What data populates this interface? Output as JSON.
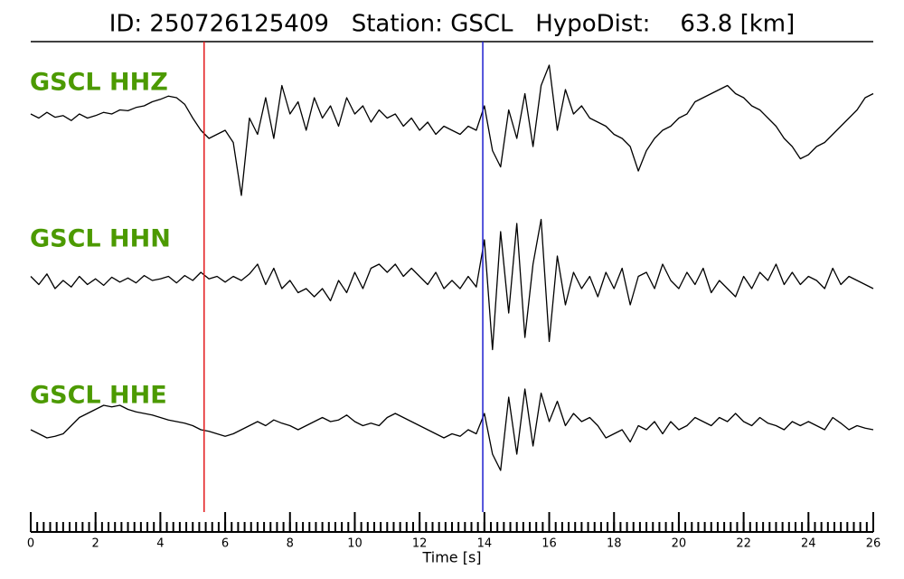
{
  "chart_data": {
    "type": "seismogram",
    "title": "ID: 250726125409   Station: GSCL   HypoDist:    63.8 [km]",
    "x_label": "Time [s]",
    "xlim": [
      0,
      26
    ],
    "xticks": [
      0,
      2,
      4,
      6,
      8,
      10,
      12,
      14,
      16,
      18,
      20,
      22,
      24,
      26
    ],
    "xminor_step": 0.2,
    "ylim": [
      -1,
      1
    ],
    "name_color": "#4c9a00",
    "markers": [
      {
        "x": 5.35,
        "color": "#e41a1c"
      },
      {
        "x": 13.95,
        "color": "#1f1fd0"
      }
    ],
    "x": [
      0,
      0.25,
      0.5,
      0.75,
      1,
      1.25,
      1.5,
      1.75,
      2,
      2.25,
      2.5,
      2.75,
      3,
      3.25,
      3.5,
      3.75,
      4,
      4.25,
      4.5,
      4.75,
      5,
      5.25,
      5.5,
      5.75,
      6,
      6.25,
      6.5,
      6.75,
      7,
      7.25,
      7.5,
      7.75,
      8,
      8.25,
      8.5,
      8.75,
      9,
      9.25,
      9.5,
      9.75,
      10,
      10.25,
      10.5,
      10.75,
      11,
      11.25,
      11.5,
      11.75,
      12,
      12.25,
      12.5,
      12.75,
      13,
      13.25,
      13.5,
      13.75,
      14,
      14.25,
      14.5,
      14.75,
      15,
      15.25,
      15.5,
      15.75,
      16,
      16.25,
      16.5,
      16.75,
      17,
      17.25,
      17.5,
      17.75,
      18,
      18.25,
      18.5,
      18.75,
      19,
      19.25,
      19.5,
      19.75,
      20,
      20.25,
      20.5,
      20.75,
      21,
      21.25,
      21.5,
      21.75,
      22,
      22.25,
      22.5,
      22.75,
      23,
      23.25,
      23.5,
      23.75,
      24,
      24.25,
      24.5,
      24.75,
      25,
      25.25,
      25.5,
      25.75,
      26
    ],
    "series": [
      {
        "name": "GSCL HHZ",
        "color": "#000000",
        "values": [
          0.1,
          0.05,
          0.12,
          0.06,
          0.08,
          0.02,
          0.1,
          0.05,
          0.08,
          0.12,
          0.1,
          0.15,
          0.14,
          0.18,
          0.2,
          0.25,
          0.28,
          0.32,
          0.3,
          0.22,
          0.05,
          -0.1,
          -0.2,
          -0.15,
          -0.1,
          -0.25,
          -0.9,
          0.05,
          -0.15,
          0.3,
          -0.2,
          0.45,
          0.1,
          0.25,
          -0.1,
          0.3,
          0.05,
          0.2,
          -0.05,
          0.3,
          0.1,
          0.2,
          0.0,
          0.15,
          0.05,
          0.1,
          -0.05,
          0.05,
          -0.1,
          0.0,
          -0.15,
          -0.05,
          -0.1,
          -0.15,
          -0.05,
          -0.1,
          0.2,
          -0.35,
          -0.55,
          0.15,
          -0.2,
          0.35,
          -0.3,
          0.45,
          0.7,
          -0.1,
          0.4,
          0.1,
          0.2,
          0.05,
          0.0,
          -0.05,
          -0.15,
          -0.2,
          -0.3,
          -0.6,
          -0.35,
          -0.2,
          -0.1,
          -0.05,
          0.05,
          0.1,
          0.25,
          0.3,
          0.35,
          0.4,
          0.45,
          0.35,
          0.3,
          0.2,
          0.15,
          0.05,
          -0.05,
          -0.2,
          -0.3,
          -0.45,
          -0.4,
          -0.3,
          -0.25,
          -0.15,
          -0.05,
          0.05,
          0.15,
          0.3,
          0.35
        ]
      },
      {
        "name": "GSCL HHN",
        "color": "#000000",
        "values": [
          0.05,
          -0.05,
          0.08,
          -0.1,
          0.0,
          -0.08,
          0.05,
          -0.05,
          0.02,
          -0.06,
          0.04,
          -0.02,
          0.03,
          -0.03,
          0.06,
          0.0,
          0.02,
          0.05,
          -0.03,
          0.06,
          0.0,
          0.1,
          0.02,
          0.05,
          -0.02,
          0.05,
          0.0,
          0.08,
          0.2,
          -0.05,
          0.15,
          -0.1,
          0.0,
          -0.15,
          -0.1,
          -0.2,
          -0.1,
          -0.25,
          0.0,
          -0.15,
          0.1,
          -0.1,
          0.15,
          0.2,
          0.1,
          0.2,
          0.05,
          0.15,
          0.05,
          -0.05,
          0.1,
          -0.1,
          0.0,
          -0.1,
          0.05,
          -0.08,
          0.5,
          -0.85,
          0.6,
          -0.4,
          0.7,
          -0.7,
          0.2,
          0.75,
          -0.75,
          0.3,
          -0.3,
          0.1,
          -0.1,
          0.05,
          -0.2,
          0.1,
          -0.1,
          0.15,
          -0.3,
          0.05,
          0.1,
          -0.1,
          0.2,
          0.0,
          -0.1,
          0.1,
          -0.05,
          0.15,
          -0.15,
          0.0,
          -0.1,
          -0.2,
          0.05,
          -0.1,
          0.1,
          0.0,
          0.2,
          -0.05,
          0.1,
          -0.05,
          0.05,
          0.0,
          -0.1,
          0.15,
          -0.05,
          0.05,
          0.0,
          -0.05,
          -0.1
        ]
      },
      {
        "name": "GSCL HHE",
        "color": "#000000",
        "values": [
          0.0,
          -0.05,
          -0.1,
          -0.08,
          -0.05,
          0.05,
          0.15,
          0.2,
          0.25,
          0.3,
          0.28,
          0.3,
          0.25,
          0.22,
          0.2,
          0.18,
          0.15,
          0.12,
          0.1,
          0.08,
          0.05,
          0.0,
          -0.02,
          -0.05,
          -0.08,
          -0.05,
          0.0,
          0.05,
          0.1,
          0.05,
          0.12,
          0.08,
          0.05,
          0.0,
          0.05,
          0.1,
          0.15,
          0.1,
          0.12,
          0.18,
          0.1,
          0.05,
          0.08,
          0.05,
          0.15,
          0.2,
          0.15,
          0.1,
          0.05,
          0.0,
          -0.05,
          -0.1,
          -0.05,
          -0.08,
          0.0,
          -0.05,
          0.2,
          -0.3,
          -0.5,
          0.4,
          -0.3,
          0.5,
          -0.2,
          0.45,
          0.1,
          0.35,
          0.05,
          0.2,
          0.1,
          0.15,
          0.05,
          -0.1,
          -0.05,
          0.0,
          -0.15,
          0.05,
          0.0,
          0.1,
          -0.05,
          0.1,
          0.0,
          0.05,
          0.15,
          0.1,
          0.05,
          0.15,
          0.1,
          0.2,
          0.1,
          0.05,
          0.15,
          0.08,
          0.05,
          0.0,
          0.1,
          0.05,
          0.1,
          0.05,
          0.0,
          0.15,
          0.08,
          0.0,
          0.05,
          0.02,
          0.0
        ]
      }
    ]
  }
}
